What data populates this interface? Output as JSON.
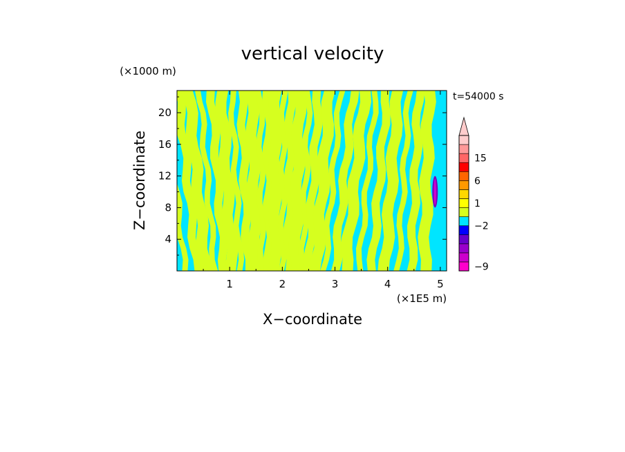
{
  "chart_data": {
    "type": "heatmap",
    "title": "vertical velocity",
    "xlabel": "X−coordinate",
    "ylabel": "Z−coordinate",
    "x_unit": "(×1E5 m)",
    "y_unit": "(×1000 m)",
    "time_label": "t=54000 s",
    "xlim": [
      0,
      5.12
    ],
    "ylim": [
      0,
      22.8
    ],
    "x_ticks": [
      1,
      2,
      3,
      4,
      5
    ],
    "y_ticks": [
      4,
      8,
      12,
      16,
      20
    ],
    "background_color": "#00e5ff",
    "field_color": "#d6ff1f",
    "streak_centers_x": [
      0.15,
      0.38,
      0.55,
      0.72,
      0.9,
      1.05,
      1.2,
      1.35,
      1.5,
      1.62,
      1.75,
      1.87,
      2.0,
      2.12,
      2.25,
      2.38,
      2.5,
      2.65,
      2.8,
      3.0,
      3.2,
      3.45,
      3.7,
      3.95,
      4.2,
      4.45,
      4.7
    ],
    "streak_tilt": [
      -0.9,
      -0.85,
      -0.8,
      -0.7,
      -0.6,
      -0.5,
      -0.4,
      -0.3,
      -0.2,
      -0.1,
      -0.05,
      0.0,
      0.05,
      0.1,
      0.2,
      0.3,
      0.45,
      0.6,
      0.75,
      0.85,
      0.9,
      0.8,
      0.7,
      0.6,
      0.5,
      0.35,
      0.2
    ],
    "anomaly": {
      "x": 4.9,
      "z_min": 8.0,
      "z_max": 12.0,
      "color": "#7a00b8",
      "core_color": "#d400d4"
    },
    "colorbar": {
      "levels": [
        {
          "color": "#ff00cc"
        },
        {
          "color": "#cc00cc"
        },
        {
          "color": "#9900cc"
        },
        {
          "color": "#6600cc"
        },
        {
          "color": "#0000ff"
        },
        {
          "color": "#00e5ff"
        },
        {
          "color": "#d6ff1f"
        },
        {
          "color": "#ffff00"
        },
        {
          "color": "#ffd700"
        },
        {
          "color": "#ff9900"
        },
        {
          "color": "#ff6600"
        },
        {
          "color": "#ff0000"
        },
        {
          "color": "#ff6666"
        },
        {
          "color": "#ff9999"
        },
        {
          "color": "#ffcccc"
        }
      ],
      "labels": [
        {
          "text": "15",
          "level": 12.5
        },
        {
          "text": "6",
          "level": 10
        },
        {
          "text": "1",
          "level": 7.5
        },
        {
          "text": "−2",
          "level": 5
        },
        {
          "text": "−9",
          "level": 0.5
        }
      ],
      "extend_max": true
    }
  }
}
